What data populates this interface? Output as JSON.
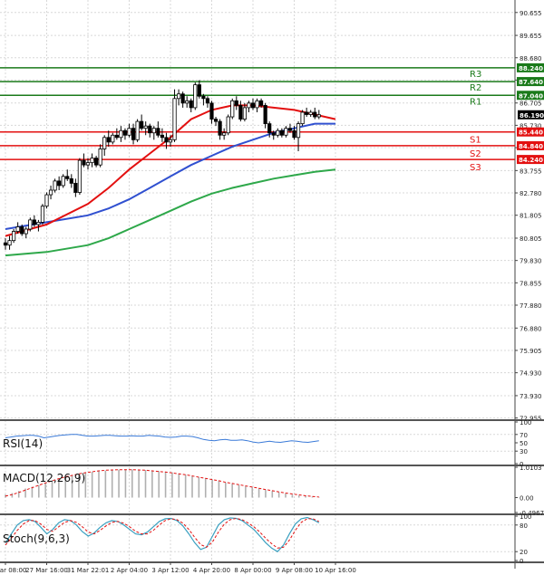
{
  "chart_data": {
    "type": "candlestick",
    "price_axis": {
      "range": [
        72.9,
        91.2
      ],
      "ticks": [
        "90.655",
        "89.655",
        "88.680",
        "87.705",
        "86.705",
        "85.730",
        "84.755",
        "83.755",
        "82.780",
        "81.805",
        "80.805",
        "79.830",
        "78.855",
        "77.880",
        "76.880",
        "75.905",
        "74.930",
        "73.930",
        "72.955"
      ]
    },
    "x_axis": {
      "ticks": [
        "26 Mar 08:00",
        "27 Mar 16:00",
        "31 Mar 22:01",
        "2 Apr 04:00",
        "3 Apr 12:00",
        "4 Apr 20:00",
        "8 Apr 00:00",
        "9 Apr 08:00",
        "10 Apr 16:00"
      ],
      "tick_bars": [
        0,
        10,
        20,
        30,
        40,
        50,
        60,
        70,
        80
      ]
    },
    "last_price": "86.190",
    "levels": [
      {
        "name": "R3",
        "value": 88.24,
        "label": "88.240",
        "color": "#1a7a1a"
      },
      {
        "name": "R2",
        "value": 87.64,
        "label": "87.640",
        "color": "#1a7a1a"
      },
      {
        "name": "R1",
        "value": 87.04,
        "label": "87.040",
        "color": "#1a7a1a"
      },
      {
        "name": "S1",
        "value": 85.44,
        "label": "85.440",
        "color": "#e31010"
      },
      {
        "name": "S2",
        "value": 84.84,
        "label": "84.840",
        "color": "#e31010"
      },
      {
        "name": "S3",
        "value": 84.24,
        "label": "84.240",
        "color": "#e31010"
      }
    ],
    "candles": [
      [
        80.6,
        80.8,
        80.3,
        80.5
      ],
      [
        80.5,
        80.9,
        80.3,
        80.7
      ],
      [
        80.7,
        81.2,
        80.6,
        81.1
      ],
      [
        81.1,
        81.5,
        81.0,
        81.3
      ],
      [
        81.3,
        81.4,
        80.9,
        81.0
      ],
      [
        81.0,
        81.3,
        80.8,
        81.2
      ],
      [
        81.2,
        81.7,
        81.1,
        81.6
      ],
      [
        81.6,
        81.8,
        81.3,
        81.4
      ],
      [
        81.4,
        81.6,
        81.1,
        81.5
      ],
      [
        81.5,
        82.3,
        81.4,
        82.2
      ],
      [
        82.2,
        82.8,
        82.1,
        82.7
      ],
      [
        82.7,
        83.1,
        82.5,
        82.9
      ],
      [
        82.9,
        83.4,
        82.8,
        83.3
      ],
      [
        83.3,
        83.5,
        82.9,
        83.1
      ],
      [
        83.1,
        83.6,
        83.0,
        83.5
      ],
      [
        83.5,
        83.8,
        83.3,
        83.4
      ],
      [
        83.4,
        83.6,
        83.0,
        83.2
      ],
      [
        83.2,
        83.4,
        82.6,
        82.8
      ],
      [
        82.8,
        84.3,
        82.7,
        84.2
      ],
      [
        84.2,
        84.5,
        83.9,
        84.0
      ],
      [
        84.0,
        84.3,
        83.8,
        84.1
      ],
      [
        84.1,
        84.5,
        83.9,
        84.3
      ],
      [
        84.3,
        84.4,
        83.9,
        84.0
      ],
      [
        84.0,
        84.9,
        83.9,
        84.7
      ],
      [
        84.7,
        85.3,
        84.4,
        85.2
      ],
      [
        85.2,
        85.5,
        84.8,
        85.0
      ],
      [
        85.0,
        85.4,
        84.9,
        85.3
      ],
      [
        85.3,
        85.6,
        85.1,
        85.2
      ],
      [
        85.2,
        85.7,
        85.0,
        85.5
      ],
      [
        85.5,
        85.6,
        85.1,
        85.3
      ],
      [
        85.3,
        85.8,
        85.2,
        85.6
      ],
      [
        85.6,
        85.8,
        84.9,
        85.1
      ],
      [
        85.1,
        86.0,
        85.0,
        85.9
      ],
      [
        85.9,
        86.2,
        85.5,
        85.6
      ],
      [
        85.6,
        85.9,
        85.3,
        85.7
      ],
      [
        85.7,
        85.8,
        85.2,
        85.4
      ],
      [
        85.4,
        85.7,
        85.1,
        85.6
      ],
      [
        85.6,
        85.9,
        85.2,
        85.3
      ],
      [
        85.3,
        85.6,
        85.0,
        85.2
      ],
      [
        85.2,
        85.4,
        84.7,
        85.0
      ],
      [
        85.0,
        85.3,
        84.8,
        85.1
      ],
      [
        85.1,
        87.3,
        85.0,
        86.9
      ],
      [
        86.9,
        87.3,
        86.6,
        87.1
      ],
      [
        87.1,
        87.2,
        86.5,
        86.7
      ],
      [
        86.7,
        87.0,
        86.5,
        86.8
      ],
      [
        86.8,
        86.9,
        86.3,
        86.5
      ],
      [
        86.5,
        87.6,
        86.4,
        87.5
      ],
      [
        87.5,
        87.7,
        86.9,
        87.0
      ],
      [
        87.0,
        87.1,
        86.6,
        86.9
      ],
      [
        86.9,
        87.0,
        86.5,
        86.7
      ],
      [
        86.7,
        86.8,
        85.8,
        86.0
      ],
      [
        86.0,
        86.1,
        85.7,
        85.9
      ],
      [
        85.9,
        86.0,
        85.1,
        85.3
      ],
      [
        85.3,
        85.6,
        85.1,
        85.4
      ],
      [
        85.4,
        86.2,
        85.3,
        86.1
      ],
      [
        86.1,
        86.9,
        86.0,
        86.8
      ],
      [
        86.8,
        87.0,
        86.4,
        86.6
      ],
      [
        86.6,
        86.8,
        85.9,
        86.0
      ],
      [
        86.0,
        86.7,
        85.9,
        86.5
      ],
      [
        86.5,
        86.8,
        86.3,
        86.7
      ],
      [
        86.7,
        86.9,
        86.4,
        86.5
      ],
      [
        86.5,
        86.9,
        86.3,
        86.8
      ],
      [
        86.8,
        86.9,
        86.5,
        86.6
      ],
      [
        86.6,
        86.7,
        85.6,
        85.8
      ],
      [
        85.8,
        85.9,
        85.2,
        85.4
      ],
      [
        85.4,
        85.5,
        85.1,
        85.3
      ],
      [
        85.3,
        85.6,
        85.2,
        85.5
      ],
      [
        85.5,
        85.6,
        85.2,
        85.3
      ],
      [
        85.3,
        85.7,
        85.2,
        85.6
      ],
      [
        85.6,
        85.8,
        85.4,
        85.5
      ],
      [
        85.5,
        85.7,
        85.1,
        85.2
      ],
      [
        85.2,
        85.9,
        84.6,
        85.8
      ],
      [
        85.8,
        86.4,
        85.7,
        86.3
      ],
      [
        86.3,
        86.5,
        86.1,
        86.2
      ],
      [
        86.2,
        86.4,
        86.1,
        86.3
      ],
      [
        86.3,
        86.5,
        86.0,
        86.1
      ],
      [
        86.1,
        86.4,
        86.0,
        86.19
      ]
    ],
    "ma_fast": {
      "color": "#e31010",
      "points": [
        [
          0,
          80.9
        ],
        [
          10,
          81.4
        ],
        [
          20,
          82.3
        ],
        [
          25,
          83.0
        ],
        [
          30,
          83.8
        ],
        [
          35,
          84.5
        ],
        [
          40,
          85.2
        ],
        [
          45,
          86.0
        ],
        [
          50,
          86.4
        ],
        [
          55,
          86.6
        ],
        [
          60,
          86.6
        ],
        [
          65,
          86.5
        ],
        [
          70,
          86.4
        ],
        [
          75,
          86.2
        ],
        [
          80,
          86.0
        ]
      ]
    },
    "ma_mid": {
      "color": "#3050d0",
      "points": [
        [
          0,
          81.2
        ],
        [
          10,
          81.5
        ],
        [
          20,
          81.8
        ],
        [
          25,
          82.1
        ],
        [
          30,
          82.5
        ],
        [
          35,
          83.0
        ],
        [
          40,
          83.5
        ],
        [
          45,
          84.0
        ],
        [
          50,
          84.4
        ],
        [
          55,
          84.8
        ],
        [
          60,
          85.1
        ],
        [
          65,
          85.4
        ],
        [
          70,
          85.6
        ],
        [
          75,
          85.8
        ],
        [
          80,
          85.8
        ]
      ]
    },
    "ma_slow": {
      "color": "#2ea84a",
      "points": [
        [
          0,
          80.05
        ],
        [
          10,
          80.2
        ],
        [
          20,
          80.5
        ],
        [
          25,
          80.8
        ],
        [
          30,
          81.2
        ],
        [
          35,
          81.6
        ],
        [
          40,
          82.0
        ],
        [
          45,
          82.4
        ],
        [
          50,
          82.75
        ],
        [
          55,
          83.0
        ],
        [
          60,
          83.2
        ],
        [
          65,
          83.4
        ],
        [
          70,
          83.55
        ],
        [
          75,
          83.7
        ],
        [
          80,
          83.8
        ]
      ]
    },
    "rsi": {
      "title": "RSI(14)",
      "axis_ticks": [
        "100",
        "70",
        "50",
        "30",
        "0"
      ],
      "color": "#3a7ad8",
      "values": [
        62,
        64,
        66,
        67,
        68,
        68,
        66,
        62,
        64,
        66,
        68,
        69,
        70,
        70,
        68,
        66,
        66,
        67,
        68,
        68,
        67,
        66,
        66,
        67,
        66,
        66,
        68,
        67,
        66,
        64,
        63,
        64,
        66,
        66,
        65,
        62,
        58,
        56,
        55,
        57,
        58,
        56,
        56,
        57,
        55,
        52,
        50,
        52,
        54,
        52,
        51,
        53,
        55,
        54,
        52,
        51,
        53,
        55
      ]
    },
    "macd": {
      "title": "MACD(12,26,9)",
      "axis_ticks": [
        "1.0103",
        "0.00",
        "-0.4967"
      ],
      "range": [
        -0.4967,
        1.0103
      ],
      "histogram_color": "#b0b0b0",
      "signal_color": "#e31010",
      "histogram": [
        0.1,
        0.15,
        0.22,
        0.3,
        0.36,
        0.42,
        0.5,
        0.58,
        0.64,
        0.7,
        0.74,
        0.78,
        0.82,
        0.86,
        0.88,
        0.9,
        0.92,
        0.93,
        0.94,
        0.94,
        0.93,
        0.92,
        0.9,
        0.88,
        0.86,
        0.84,
        0.8,
        0.76,
        0.72,
        0.68,
        0.64,
        0.6,
        0.56,
        0.5,
        0.46,
        0.42,
        0.38,
        0.34,
        0.3,
        0.26,
        0.22,
        0.18,
        0.14,
        0.1,
        0.07,
        0.05,
        0.03,
        0.02
      ],
      "signal": [
        0.05,
        0.1,
        0.17,
        0.25,
        0.33,
        0.41,
        0.49,
        0.56,
        0.63,
        0.69,
        0.74,
        0.79,
        0.83,
        0.86,
        0.89,
        0.91,
        0.92,
        0.93,
        0.93,
        0.93,
        0.92,
        0.91,
        0.89,
        0.87,
        0.85,
        0.82,
        0.79,
        0.76,
        0.72,
        0.68,
        0.64,
        0.6,
        0.56,
        0.51,
        0.47,
        0.43,
        0.39,
        0.35,
        0.31,
        0.27,
        0.23,
        0.19,
        0.15,
        0.12,
        0.09,
        0.06,
        0.04,
        0.02
      ]
    },
    "stoch": {
      "title": "Stoch(9,6,3)",
      "axis_ticks": [
        "100",
        "80",
        "20",
        "0"
      ],
      "main_color": "#3aa0c0",
      "signal_color": "#e31010",
      "main": [
        40,
        60,
        80,
        90,
        92,
        88,
        75,
        60,
        70,
        85,
        92,
        90,
        80,
        65,
        55,
        62,
        75,
        85,
        90,
        88,
        80,
        70,
        60,
        58,
        64,
        76,
        88,
        94,
        95,
        90,
        78,
        60,
        40,
        25,
        30,
        55,
        80,
        92,
        96,
        95,
        90,
        80,
        70,
        55,
        40,
        28,
        20,
        35,
        60,
        82,
        94,
        97,
        92,
        85
      ],
      "signal": [
        35,
        50,
        68,
        82,
        90,
        90,
        82,
        70,
        66,
        76,
        86,
        90,
        86,
        76,
        64,
        60,
        68,
        78,
        86,
        88,
        84,
        76,
        66,
        60,
        60,
        68,
        80,
        90,
        94,
        92,
        84,
        70,
        52,
        36,
        30,
        42,
        64,
        82,
        92,
        95,
        92,
        85,
        76,
        64,
        50,
        38,
        28,
        30,
        46,
        68,
        86,
        94,
        94,
        88
      ]
    }
  }
}
